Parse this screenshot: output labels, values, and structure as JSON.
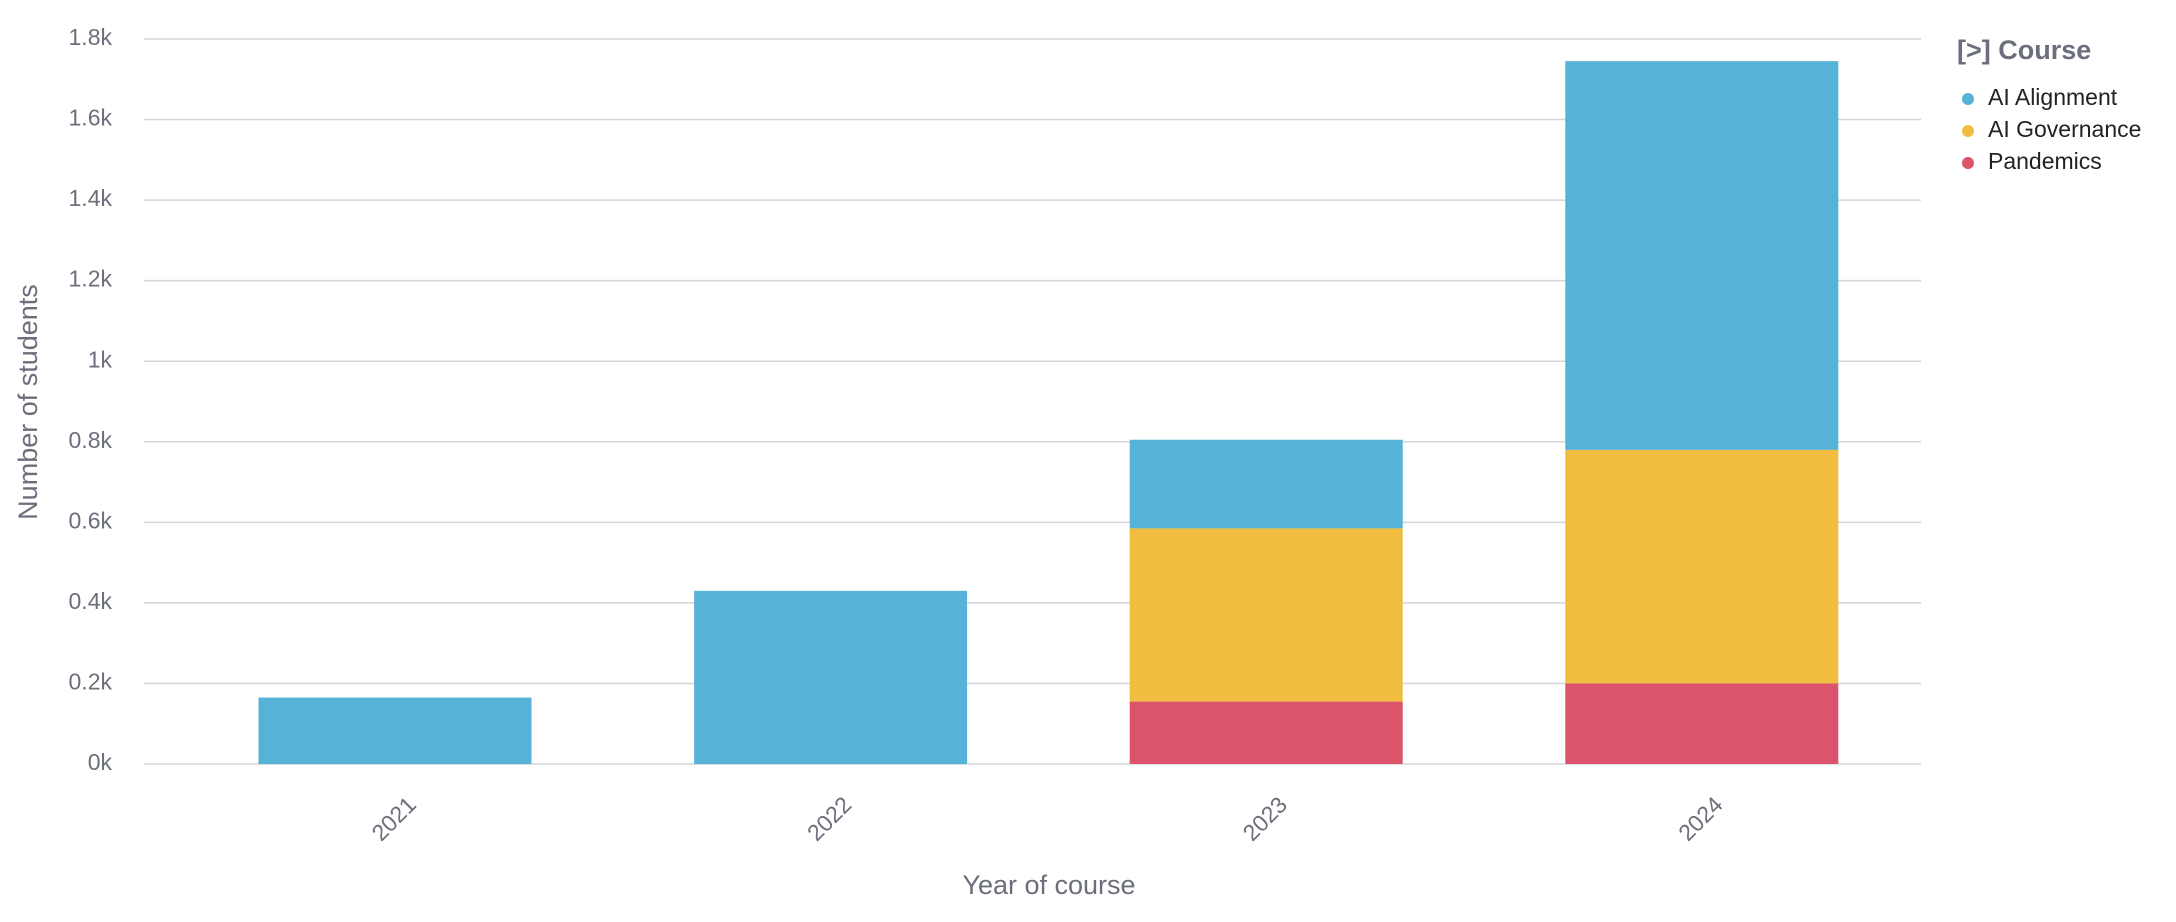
{
  "chart_data": {
    "type": "stacked_bar",
    "x_label": "Year of course",
    "y_label": "Number of students",
    "legend_title": "[>] Course",
    "legend_position": "right",
    "categories": [
      "2021",
      "2022",
      "2023",
      "2024"
    ],
    "series": [
      {
        "name": "Pandemics",
        "color": "#dc546b",
        "values": [
          null,
          null,
          155,
          200
        ]
      },
      {
        "name": "AI Governance",
        "color": "#f0bd41",
        "values": [
          null,
          null,
          430,
          580
        ]
      },
      {
        "name": "AI Alignment",
        "color": "#56b2d6",
        "values": [
          165,
          430,
          220,
          965
        ]
      }
    ],
    "legend_order": [
      2,
      1,
      0
    ],
    "ylim": [
      0,
      1800
    ],
    "yticks": [
      {
        "value": 0,
        "label": "0k"
      },
      {
        "value": 200,
        "label": "0.2k"
      },
      {
        "value": 400,
        "label": "0.4k"
      },
      {
        "value": 600,
        "label": "0.6k"
      },
      {
        "value": 800,
        "label": "0.8k"
      },
      {
        "value": 1000,
        "label": "1k"
      },
      {
        "value": 1200,
        "label": "1.2k"
      },
      {
        "value": 1400,
        "label": "1.4k"
      },
      {
        "value": 1600,
        "label": "1.6k"
      },
      {
        "value": 1800,
        "label": "1.8k"
      }
    ],
    "grid": true
  }
}
